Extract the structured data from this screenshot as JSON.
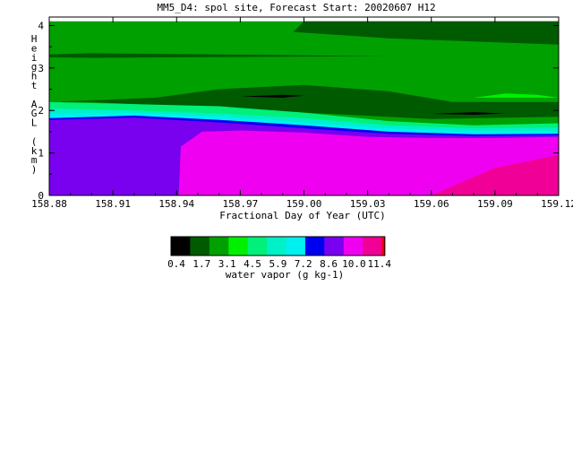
{
  "chart_data": {
    "type": "heatmap",
    "title": "MM5_D4: spol site,  Forecast Start: 20020607 H12",
    "xlabel": "Fractional Day of Year (UTC)",
    "ylabel": "Height AGL (km)",
    "xlim": [
      158.88,
      159.12
    ],
    "ylim": [
      0,
      4.2
    ],
    "x_ticks": [
      "158.88",
      "158.91",
      "158.94",
      "158.97",
      "159.00",
      "159.03",
      "159.06",
      "159.09",
      "159.12"
    ],
    "y_ticks": [
      "0",
      "1",
      "2",
      "3",
      "4"
    ],
    "colorbar": {
      "label": "water vapor (g kg-1)",
      "tick_labels": [
        "0.4",
        "1.7",
        "3.1",
        "4.5",
        "5.9",
        "7.2",
        "8.6",
        "10.0",
        "11.4"
      ],
      "colors": [
        "#000000",
        "#005a00",
        "#00a000",
        "#00f000",
        "#00f07a",
        "#00f0c8",
        "#00f0f0",
        "#0000f0",
        "#7a00f0",
        "#f000f0",
        "#f00096",
        "#f00000"
      ]
    },
    "regions": [
      {
        "color": "#00a000",
        "poly": [
          [
            158.88,
            4.2
          ],
          [
            159.12,
            4.2
          ],
          [
            159.12,
            1.4
          ],
          [
            158.88,
            1.4
          ]
        ]
      },
      {
        "color": "#005a00",
        "poly": [
          [
            159.0,
            4.2
          ],
          [
            159.12,
            4.2
          ],
          [
            159.12,
            3.55
          ],
          [
            159.04,
            3.7
          ],
          [
            158.995,
            3.85
          ]
        ]
      },
      {
        "color": "#005a00",
        "poly": [
          [
            158.88,
            3.32
          ],
          [
            158.9,
            3.35
          ],
          [
            158.935,
            3.33
          ],
          [
            159.04,
            3.28
          ],
          [
            158.935,
            3.25
          ],
          [
            158.9,
            3.24
          ],
          [
            158.88,
            3.25
          ]
        ]
      },
      {
        "color": "#005a00",
        "poly": [
          [
            158.93,
            2.3
          ],
          [
            158.96,
            2.5
          ],
          [
            159.0,
            2.6
          ],
          [
            159.04,
            2.45
          ],
          [
            159.07,
            2.2
          ],
          [
            159.12,
            2.2
          ],
          [
            159.12,
            1.85
          ],
          [
            159.06,
            1.8
          ],
          [
            159.0,
            1.95
          ],
          [
            158.94,
            2.1
          ],
          [
            158.9,
            2.2
          ],
          [
            158.88,
            2.2
          ]
        ]
      },
      {
        "color": "#000000",
        "poly": [
          [
            158.97,
            2.33
          ],
          [
            158.99,
            2.37
          ],
          [
            159.0,
            2.35
          ],
          [
            158.99,
            2.3
          ]
        ]
      },
      {
        "color": "#000000",
        "poly": [
          [
            159.06,
            1.92
          ],
          [
            159.08,
            1.96
          ],
          [
            159.095,
            1.93
          ],
          [
            159.08,
            1.9
          ]
        ]
      },
      {
        "color": "#00f000",
        "poly": [
          [
            159.08,
            2.3
          ],
          [
            159.095,
            2.4
          ],
          [
            159.11,
            2.37
          ],
          [
            159.12,
            2.3
          ]
        ]
      },
      {
        "color": "#00f07a",
        "poly": [
          [
            158.88,
            2.2
          ],
          [
            158.92,
            2.15
          ],
          [
            158.96,
            2.1
          ],
          [
            159.0,
            1.95
          ],
          [
            159.04,
            1.75
          ],
          [
            159.08,
            1.65
          ],
          [
            159.12,
            1.7
          ],
          [
            159.12,
            1.4
          ],
          [
            158.88,
            1.4
          ]
        ]
      },
      {
        "color": "#00f0c8",
        "poly": [
          [
            158.88,
            2.05
          ],
          [
            158.92,
            2.0
          ],
          [
            158.96,
            1.93
          ],
          [
            159.0,
            1.82
          ],
          [
            159.04,
            1.65
          ],
          [
            159.08,
            1.58
          ],
          [
            159.12,
            1.6
          ],
          [
            159.12,
            1.4
          ],
          [
            158.88,
            1.4
          ]
        ]
      },
      {
        "color": "#00f0f0",
        "poly": [
          [
            158.88,
            1.92
          ],
          [
            158.92,
            1.95
          ],
          [
            158.96,
            1.86
          ],
          [
            159.0,
            1.72
          ],
          [
            159.04,
            1.58
          ],
          [
            159.08,
            1.52
          ],
          [
            159.12,
            1.52
          ],
          [
            159.12,
            1.4
          ],
          [
            158.88,
            1.4
          ]
        ]
      },
      {
        "color": "#0000f0",
        "poly": [
          [
            158.88,
            1.82
          ],
          [
            158.92,
            1.88
          ],
          [
            158.96,
            1.78
          ],
          [
            159.0,
            1.65
          ],
          [
            159.04,
            1.5
          ],
          [
            159.08,
            1.44
          ],
          [
            159.12,
            1.45
          ],
          [
            159.12,
            1.3
          ],
          [
            158.88,
            1.3
          ]
        ]
      },
      {
        "color": "#7a00f0",
        "poly": [
          [
            158.88,
            1.78
          ],
          [
            158.92,
            1.83
          ],
          [
            158.96,
            1.72
          ],
          [
            159.0,
            1.58
          ],
          [
            159.04,
            1.45
          ],
          [
            159.08,
            1.4
          ],
          [
            159.12,
            1.42
          ],
          [
            159.12,
            0
          ],
          [
            158.88,
            0
          ]
        ]
      },
      {
        "color": "#f000f0",
        "poly": [
          [
            158.941,
            0
          ],
          [
            158.942,
            1.15
          ],
          [
            158.952,
            1.5
          ],
          [
            158.97,
            1.53
          ],
          [
            159.0,
            1.48
          ],
          [
            159.03,
            1.38
          ],
          [
            159.06,
            1.35
          ],
          [
            159.09,
            1.35
          ],
          [
            159.12,
            1.38
          ],
          [
            159.12,
            0
          ]
        ]
      },
      {
        "color": "#f00096",
        "poly": [
          [
            159.06,
            0
          ],
          [
            159.09,
            0.65
          ],
          [
            159.12,
            0.95
          ],
          [
            159.12,
            0
          ]
        ]
      }
    ]
  }
}
